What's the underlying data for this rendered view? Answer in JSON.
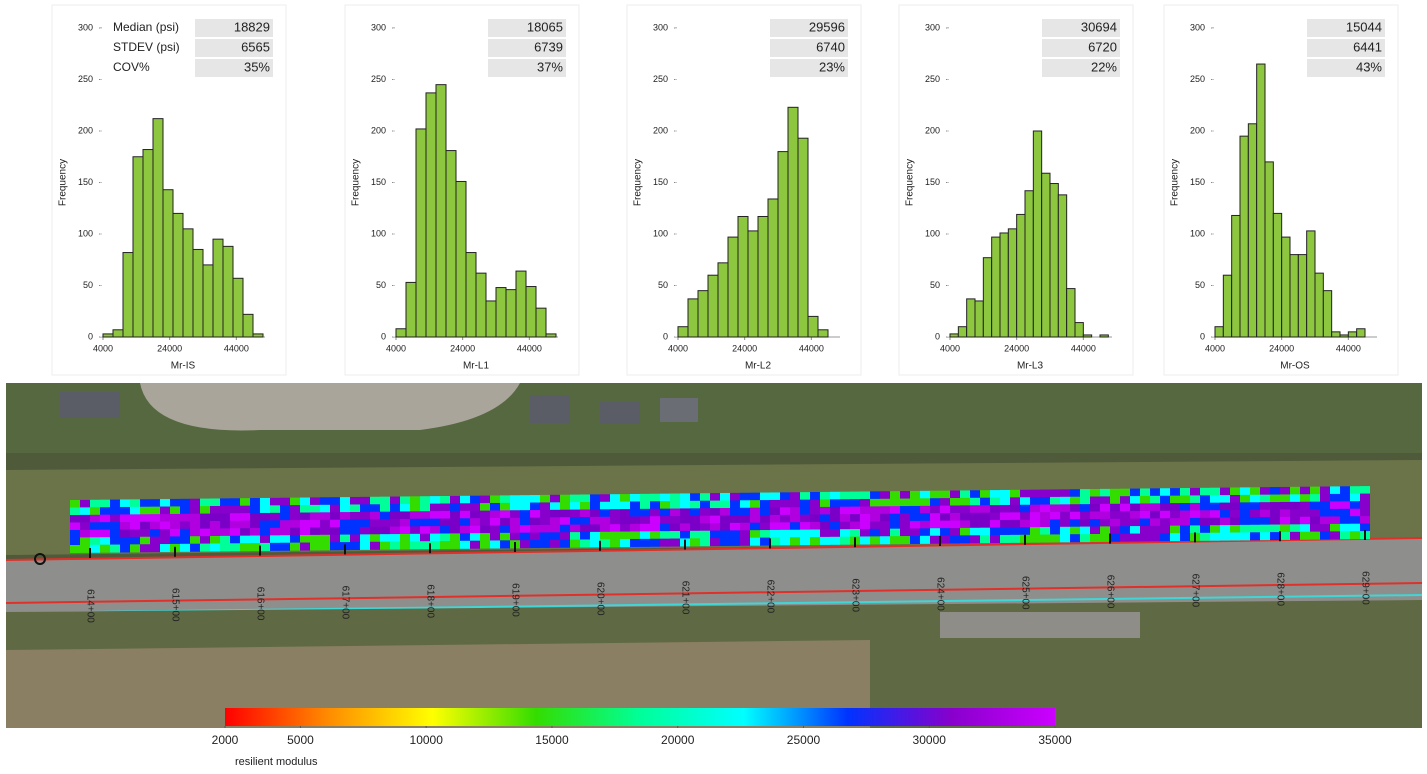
{
  "chart_data": [
    {
      "type": "histogram",
      "xlabel": "Mr-IS",
      "ylabel": "Frequency",
      "color": "#8dc63f",
      "stat_labels": [
        "Median (psi)",
        "STDEV (psi)",
        "COV%"
      ],
      "stats": [
        "18829",
        "6565",
        "35%"
      ],
      "bins": [
        4000,
        7000,
        10000,
        13000,
        16000,
        19000,
        22000,
        25000,
        28000,
        31000,
        34000,
        37000,
        40000,
        43000,
        46000,
        49000,
        52000
      ],
      "values": [
        3,
        7,
        82,
        175,
        182,
        212,
        143,
        120,
        105,
        85,
        70,
        95,
        88,
        57,
        22,
        3
      ],
      "xlim": [
        4000,
        52000
      ],
      "xticks": [
        4000,
        24000,
        44000
      ],
      "ylim": [
        0,
        300
      ],
      "yticks": [
        0,
        50,
        100,
        150,
        200,
        250,
        300
      ]
    },
    {
      "type": "histogram",
      "xlabel": "Mr-L1",
      "ylabel": "Frequency",
      "color": "#8dc63f",
      "stats": [
        "18065",
        "6739",
        "37%"
      ],
      "bins": [
        4000,
        7000,
        10000,
        13000,
        16000,
        19000,
        22000,
        25000,
        28000,
        31000,
        34000,
        37000,
        40000,
        43000,
        46000,
        49000,
        52000
      ],
      "values": [
        8,
        53,
        202,
        237,
        245,
        181,
        151,
        82,
        62,
        35,
        48,
        46,
        64,
        49,
        28,
        3
      ],
      "xlim": [
        4000,
        52000
      ],
      "xticks": [
        4000,
        24000,
        44000
      ],
      "ylim": [
        0,
        300
      ],
      "yticks": [
        0,
        50,
        100,
        150,
        200,
        250,
        300
      ]
    },
    {
      "type": "histogram",
      "xlabel": "Mr-L2",
      "ylabel": "Frequency",
      "color": "#8dc63f",
      "stats": [
        "29596",
        "6740",
        "23%"
      ],
      "bins": [
        4000,
        7000,
        10000,
        13000,
        16000,
        19000,
        22000,
        25000,
        28000,
        31000,
        34000,
        37000,
        40000,
        43000,
        46000,
        49000
      ],
      "values": [
        10,
        37,
        45,
        60,
        72,
        97,
        117,
        103,
        117,
        134,
        180,
        223,
        193,
        20,
        7
      ],
      "xlim": [
        4000,
        52000
      ],
      "xticks": [
        4000,
        24000,
        44000
      ],
      "ylim": [
        0,
        300
      ],
      "yticks": [
        0,
        50,
        100,
        150,
        200,
        250,
        300
      ]
    },
    {
      "type": "histogram",
      "xlabel": "Mr-L3",
      "ylabel": "Frequency",
      "color": "#8dc63f",
      "stats": [
        "30694",
        "6720",
        "22%"
      ],
      "bins": [
        4000,
        6500,
        9000,
        11500,
        14000,
        16500,
        19000,
        21500,
        24000,
        26500,
        29000,
        31500,
        34000,
        36500,
        39000,
        41500,
        44000,
        46500,
        49000,
        51500
      ],
      "values": [
        3,
        10,
        37,
        35,
        77,
        97,
        101,
        105,
        119,
        142,
        200,
        159,
        149,
        138,
        47,
        14,
        2,
        0,
        2
      ],
      "xlim": [
        4000,
        52000
      ],
      "xticks": [
        4000,
        24000,
        44000
      ],
      "ylim": [
        0,
        300
      ],
      "yticks": [
        0,
        50,
        100,
        150,
        200,
        250,
        300
      ]
    },
    {
      "type": "histogram",
      "xlabel": "Mr-OS",
      "ylabel": "Frequency",
      "color": "#8dc63f",
      "stats": [
        "15044",
        "6441",
        "43%"
      ],
      "bins": [
        4000,
        6500,
        9000,
        11500,
        14000,
        16500,
        19000,
        21500,
        24000,
        26500,
        29000,
        31500,
        34000,
        36500,
        39000,
        41500,
        44000,
        46500,
        49000
      ],
      "values": [
        10,
        60,
        118,
        195,
        207,
        265,
        170,
        120,
        97,
        80,
        80,
        103,
        62,
        45,
        5,
        2,
        5,
        8
      ],
      "xlim": [
        4000,
        52000
      ],
      "xticks": [
        4000,
        24000,
        44000
      ],
      "ylim": [
        0,
        300
      ],
      "yticks": [
        0,
        50,
        100,
        150,
        200,
        250,
        300
      ]
    },
    {
      "type": "colorbar",
      "xlabel": "resilient modulus",
      "colors": [
        "#ff0000",
        "#ff8c00",
        "#ffff00",
        "#33dd00",
        "#00ff99",
        "#00ffff",
        "#0033ff",
        "#8800cc",
        "#cc00ff"
      ],
      "xlim": [
        2000,
        35000
      ],
      "xticks": [
        2000,
        5000,
        10000,
        15000,
        20000,
        25000,
        30000,
        35000
      ]
    }
  ],
  "map": {
    "stations": [
      "614+00",
      "615+00",
      "616+00",
      "617+00",
      "618+00",
      "619+00",
      "620+00",
      "621+00",
      "622+00",
      "623+00",
      "624+00",
      "625+00",
      "626+00",
      "627+00",
      "628+00",
      "629+00"
    ]
  }
}
